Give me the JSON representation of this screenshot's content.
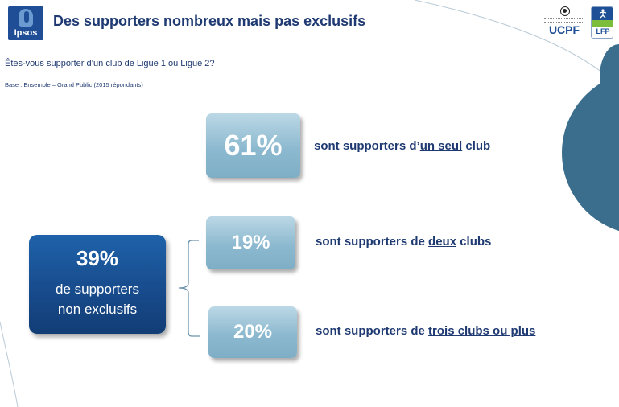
{
  "header": {
    "logo_text": "Ipsos",
    "title": "Des supporters nombreux mais pas exclusifs",
    "partner_logos": [
      {
        "name": "UCPF",
        "text": "UCPF"
      },
      {
        "name": "LFP",
        "text": "LFP"
      }
    ]
  },
  "question": "Êtes-vous supporter d’un club de Ligue 1 ou Ligue 2?",
  "base": "Base : Ensemble – Grand Public  (2015 répondants)",
  "stats": [
    {
      "value": "61%",
      "prefix": "sont supporters d’",
      "emphasis": "un seul",
      "suffix": " club"
    },
    {
      "value": "19%",
      "prefix": "sont supporters de ",
      "emphasis": "deux",
      "suffix": " clubs"
    },
    {
      "value": "20%",
      "prefix": "sont supporters de ",
      "emphasis": "trois clubs ou plus",
      "suffix": ""
    }
  ],
  "summary": {
    "value": "39%",
    "line1": "de supporters",
    "line2": "non exclusifs"
  },
  "colors": {
    "title": "#1f3a72",
    "light_box": "#8cb9cf",
    "dark_box": "#174a8a",
    "deco_circle": "#3b6e8c",
    "ipsos_blue": "#1f4e96"
  }
}
